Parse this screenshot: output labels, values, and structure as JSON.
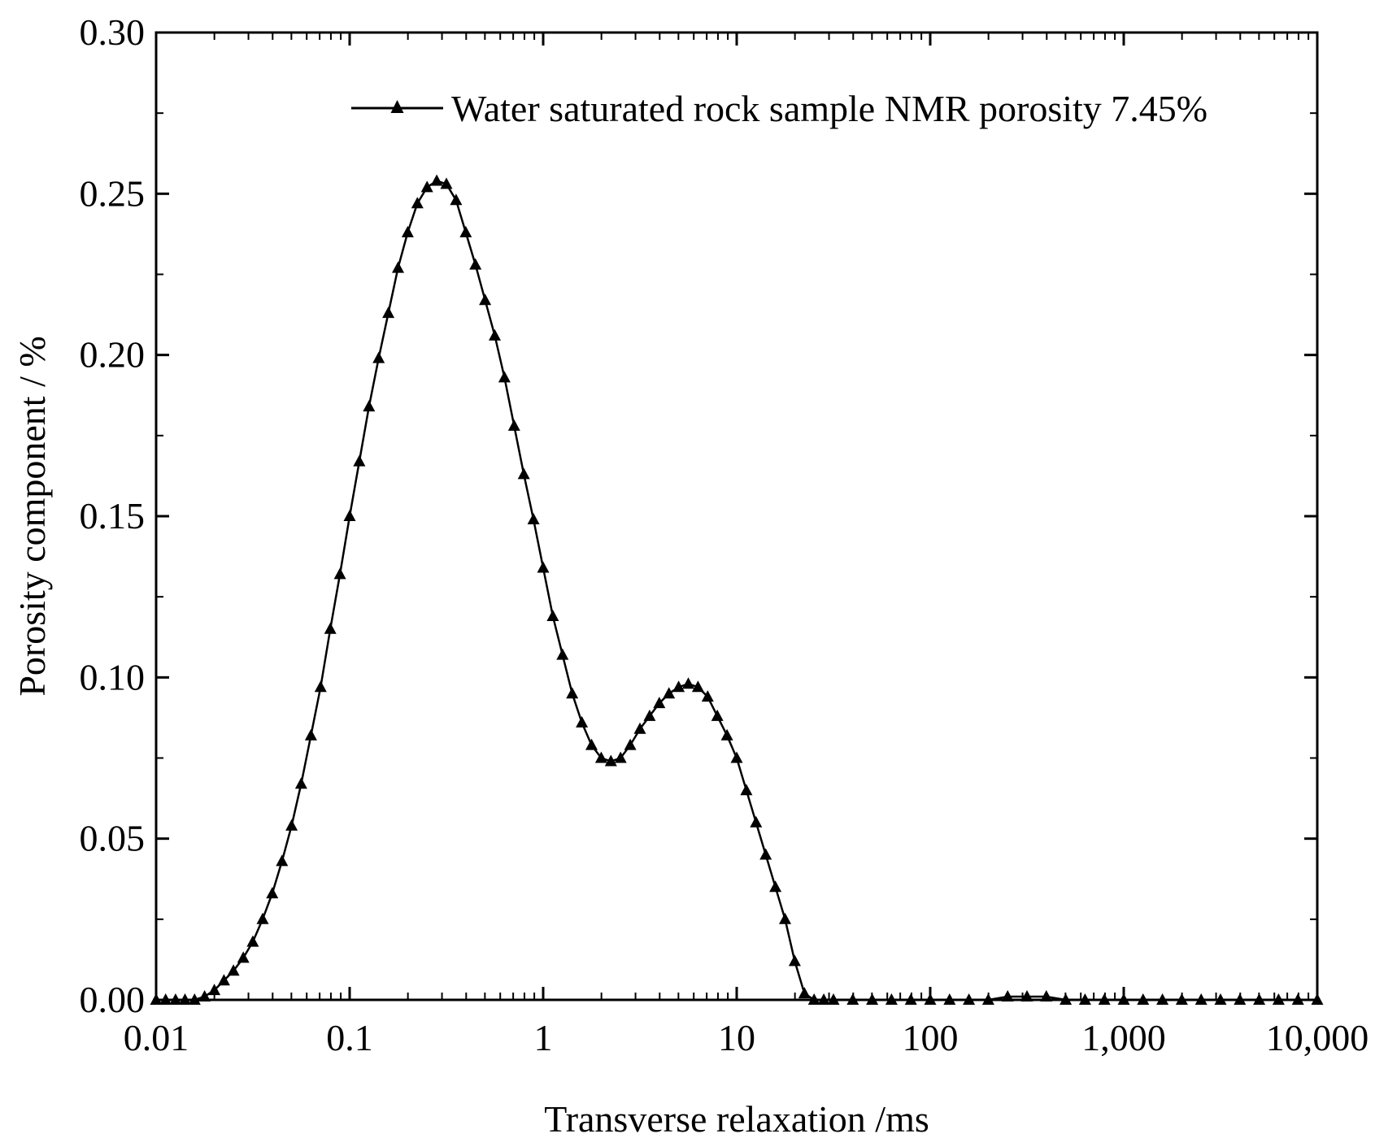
{
  "chart_data": {
    "type": "line",
    "title": "",
    "xlabel": "Transverse relaxation /ms",
    "ylabel": "Porosity component / %",
    "xscale": "log",
    "xlim": [
      0.01,
      10000
    ],
    "ylim": [
      0,
      0.3
    ],
    "x_ticks": [
      0.01,
      0.1,
      1,
      10,
      100,
      1000,
      10000
    ],
    "x_tick_labels": [
      "0.01",
      "0.1",
      "1",
      "10",
      "100",
      "1,000",
      "10,000"
    ],
    "y_ticks": [
      0,
      0.05,
      0.1,
      0.15,
      0.2,
      0.25,
      0.3
    ],
    "y_tick_labels": [
      "0.00",
      "0.05",
      "0.10",
      "0.15",
      "0.20",
      "0.25",
      "0.30"
    ],
    "grid": false,
    "legend_position": "top-right",
    "series": [
      {
        "name": "Water saturated rock sample  NMR porosity 7.45%",
        "color": "#000000",
        "marker": "triangle-up",
        "points": [
          [
            0.01,
            0.0
          ],
          [
            0.0112,
            0.0
          ],
          [
            0.0126,
            0.0
          ],
          [
            0.0141,
            0.0
          ],
          [
            0.0158,
            0.0
          ],
          [
            0.0178,
            0.001
          ],
          [
            0.02,
            0.003
          ],
          [
            0.0224,
            0.006
          ],
          [
            0.0251,
            0.009
          ],
          [
            0.0282,
            0.013
          ],
          [
            0.0316,
            0.018
          ],
          [
            0.0355,
            0.025
          ],
          [
            0.0398,
            0.033
          ],
          [
            0.0447,
            0.043
          ],
          [
            0.0501,
            0.054
          ],
          [
            0.0562,
            0.067
          ],
          [
            0.0631,
            0.082
          ],
          [
            0.0708,
            0.097
          ],
          [
            0.0794,
            0.115
          ],
          [
            0.0891,
            0.132
          ],
          [
            0.1,
            0.15
          ],
          [
            0.1122,
            0.167
          ],
          [
            0.1259,
            0.184
          ],
          [
            0.1413,
            0.199
          ],
          [
            0.1585,
            0.213
          ],
          [
            0.1778,
            0.227
          ],
          [
            0.1995,
            0.238
          ],
          [
            0.2239,
            0.247
          ],
          [
            0.2512,
            0.252
          ],
          [
            0.2818,
            0.254
          ],
          [
            0.3162,
            0.253
          ],
          [
            0.3548,
            0.248
          ],
          [
            0.3981,
            0.238
          ],
          [
            0.4467,
            0.228
          ],
          [
            0.5012,
            0.217
          ],
          [
            0.5623,
            0.206
          ],
          [
            0.631,
            0.193
          ],
          [
            0.7079,
            0.178
          ],
          [
            0.7943,
            0.163
          ],
          [
            0.8913,
            0.149
          ],
          [
            1.0,
            0.134
          ],
          [
            1.122,
            0.119
          ],
          [
            1.2589,
            0.107
          ],
          [
            1.4125,
            0.095
          ],
          [
            1.5849,
            0.086
          ],
          [
            1.7783,
            0.079
          ],
          [
            1.9953,
            0.075
          ],
          [
            2.2387,
            0.074
          ],
          [
            2.5119,
            0.075
          ],
          [
            2.8184,
            0.079
          ],
          [
            3.1623,
            0.084
          ],
          [
            3.5481,
            0.088
          ],
          [
            3.9811,
            0.092
          ],
          [
            4.4668,
            0.095
          ],
          [
            5.0119,
            0.097
          ],
          [
            5.6234,
            0.098
          ],
          [
            6.3096,
            0.097
          ],
          [
            7.0795,
            0.094
          ],
          [
            7.9433,
            0.088
          ],
          [
            8.9125,
            0.082
          ],
          [
            10.0,
            0.075
          ],
          [
            11.22,
            0.065
          ],
          [
            12.589,
            0.055
          ],
          [
            14.125,
            0.045
          ],
          [
            15.849,
            0.035
          ],
          [
            17.783,
            0.025
          ],
          [
            19.953,
            0.012
          ],
          [
            22.387,
            0.002
          ],
          [
            25.119,
            0.0
          ],
          [
            28.184,
            0.0
          ],
          [
            31.623,
            0.0
          ],
          [
            39.811,
            0.0
          ],
          [
            50.119,
            0.0
          ],
          [
            63.096,
            0.0
          ],
          [
            79.433,
            0.0
          ],
          [
            100.0,
            0.0
          ],
          [
            125.89,
            0.0
          ],
          [
            158.49,
            0.0
          ],
          [
            199.53,
            0.0
          ],
          [
            251.19,
            0.001
          ],
          [
            316.23,
            0.001
          ],
          [
            398.11,
            0.001
          ],
          [
            501.19,
            0.0
          ],
          [
            630.96,
            0.0
          ],
          [
            794.33,
            0.0
          ],
          [
            1000.0,
            0.0
          ],
          [
            1258.9,
            0.0
          ],
          [
            1584.9,
            0.0
          ],
          [
            1995.3,
            0.0
          ],
          [
            2511.9,
            0.0
          ],
          [
            3162.3,
            0.0
          ],
          [
            3981.1,
            0.0
          ],
          [
            5011.9,
            0.0
          ],
          [
            6309.6,
            0.0
          ],
          [
            7943.3,
            0.0
          ],
          [
            10000,
            0.0
          ]
        ]
      }
    ]
  }
}
